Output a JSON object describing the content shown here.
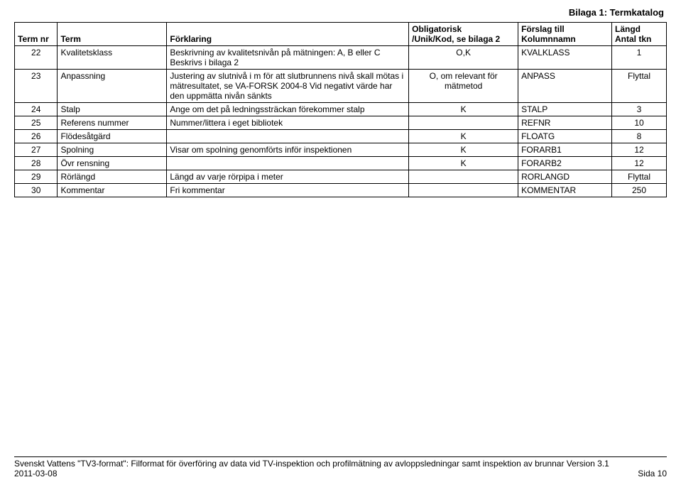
{
  "header": {
    "title": "Bilaga 1: Termkatalog"
  },
  "table": {
    "columns": {
      "nr": "Term nr",
      "term": "Term",
      "fork": "Förklaring",
      "oblig_l1": "Obligatorisk",
      "oblig_l2": "/Unik/Kod, se bilaga 2",
      "kol_l1": "Förslag till",
      "kol_l2": "Kolumnnamn",
      "len_l1": "Längd",
      "len_l2": "Antal tkn"
    },
    "rows": [
      {
        "nr": "22",
        "term": "Kvalitetsklass",
        "fork": "Beskrivning av kvalitetsnivån på mätningen: A, B eller C Beskrivs i bilaga 2",
        "oblig": "O,K",
        "kol": "KVALKLASS",
        "len": "1"
      },
      {
        "nr": "23",
        "term": "Anpassning",
        "fork": "Justering av slutnivå i m för att slutbrunnens nivå skall mötas i mätresultatet, se VA-FORSK 2004-8 Vid negativt värde har den uppmätta nivån sänkts",
        "oblig": "O, om relevant för mätmetod",
        "kol": "ANPASS",
        "len": "Flyttal"
      },
      {
        "nr": "24",
        "term": "Stalp",
        "fork": "Ange om det på ledningssträckan förekommer stalp",
        "oblig": "K",
        "kol": "STALP",
        "len": "3"
      },
      {
        "nr": "25",
        "term": "Referens nummer",
        "fork": "Nummer/littera i eget bibliotek",
        "oblig": "",
        "kol": "REFNR",
        "len": "10"
      },
      {
        "nr": "26",
        "term": "Flödesåtgärd",
        "fork": "",
        "oblig": "K",
        "kol": "FLOATG",
        "len": "8"
      },
      {
        "nr": "27",
        "term": "Spolning",
        "fork": "Visar om spolning genomförts inför inspektionen",
        "oblig": "K",
        "kol": "FORARB1",
        "len": "12"
      },
      {
        "nr": "28",
        "term": "Övr rensning",
        "fork": "",
        "oblig": "K",
        "kol": "FORARB2",
        "len": "12"
      },
      {
        "nr": "29",
        "term": "Rörlängd",
        "fork": "Längd av varje rörpipa i meter",
        "oblig": "",
        "kol": "RORLANGD",
        "len": "Flyttal"
      },
      {
        "nr": "30",
        "term": "Kommentar",
        "fork": "Fri kommentar",
        "oblig": "",
        "kol": "KOMMENTAR",
        "len": "250"
      }
    ]
  },
  "footer": {
    "line1": "Svenskt Vattens \"TV3-format\": Filformat för överföring av data vid TV-inspektion och profilmätning av avloppsledningar samt inspektion av brunnar Version 3.1",
    "date": "2011-03-08",
    "page": "Sida 10"
  }
}
